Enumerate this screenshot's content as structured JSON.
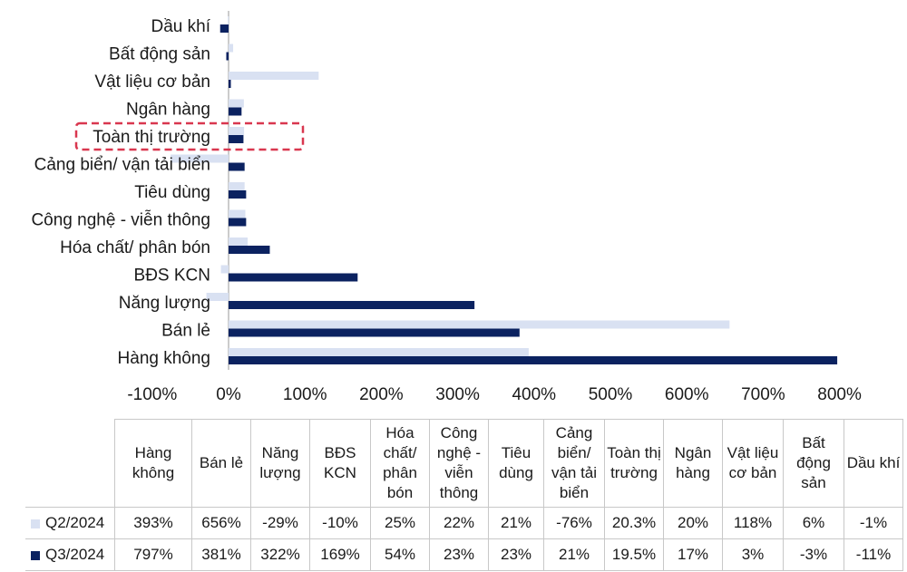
{
  "chart_data": {
    "type": "bar",
    "orientation": "horizontal",
    "categories": [
      "Dầu khí",
      "Bất động sản",
      "Vật liệu cơ bản",
      "Ngân hàng",
      "Toàn thị trường",
      "Cảng biển/ vận tải biển",
      "Tiêu dùng",
      "Công nghệ - viễn thông",
      "Hóa chất/ phân bón",
      "BĐS KCN",
      "Năng lượng",
      "Bán lẻ",
      "Hàng không"
    ],
    "series": [
      {
        "name": "Q2/2024",
        "color": "#d9e1f2",
        "values": [
          -1,
          6,
          118,
          20,
          20.3,
          -76,
          21,
          22,
          25,
          -10,
          -29,
          656,
          393
        ]
      },
      {
        "name": "Q3/2024",
        "color": "#0b2260",
        "values": [
          -11,
          -3,
          3,
          17,
          19.5,
          21,
          23,
          23,
          54,
          169,
          322,
          381,
          797
        ]
      }
    ],
    "xlim": [
      -100,
      800
    ],
    "xticks": [
      "-100%",
      "0%",
      "100%",
      "200%",
      "300%",
      "400%",
      "500%",
      "600%",
      "700%",
      "800%"
    ],
    "highlight": {
      "category": "Toàn thị trường",
      "style": "dashed red box",
      "color": "#d9374f"
    }
  },
  "table": {
    "headers": [
      "Hàng không",
      "Bán lẻ",
      "Năng lượng",
      "BĐS KCN",
      "Hóa chất/ phân bón",
      "Công nghệ - viễn thông",
      "Tiêu dùng",
      "Cảng biển/ vận tải biển",
      "Toàn thị trường",
      "Ngân hàng",
      "Vật liệu cơ bản",
      "Bất động sản",
      "Dầu khí"
    ],
    "rows": [
      {
        "label": "Q2/2024",
        "color": "#d9e1f2",
        "cells": [
          "393%",
          "656%",
          "-29%",
          "-10%",
          "25%",
          "22%",
          "21%",
          "-76%",
          "20.3%",
          "20%",
          "118%",
          "6%",
          "-1%"
        ]
      },
      {
        "label": "Q3/2024",
        "color": "#0b2260",
        "cells": [
          "797%",
          "381%",
          "322%",
          "169%",
          "54%",
          "23%",
          "23%",
          "21%",
          "19.5%",
          "17%",
          "3%",
          "-3%",
          "-11%"
        ]
      }
    ]
  }
}
